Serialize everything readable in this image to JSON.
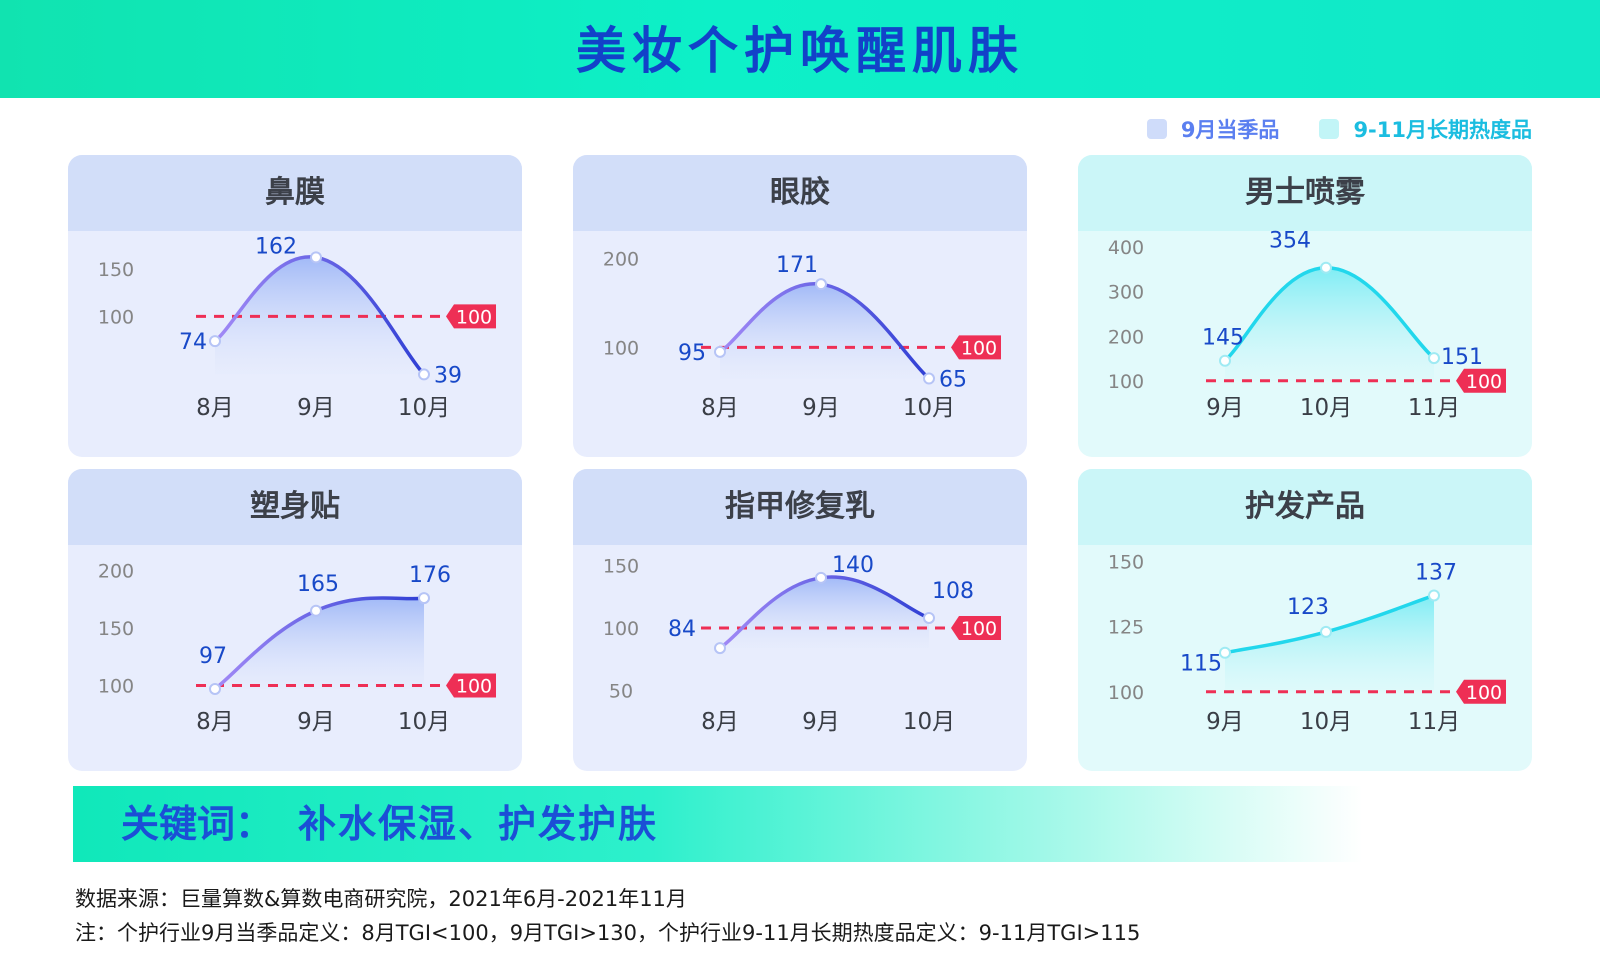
{
  "title": "美妆个护唤醒肌肤",
  "legend": [
    {
      "label": "9月当季品",
      "color": "#cfdcfa",
      "text_color": "#5b7ff0"
    },
    {
      "label": "9-11月长期热度品",
      "color": "#c2f5f7",
      "text_color": "#1bbde0"
    }
  ],
  "chart_data": [
    {
      "type": "line",
      "title": "鼻膜",
      "theme": "blue",
      "categories": [
        "8月",
        "9月",
        "10月"
      ],
      "values": [
        74,
        162,
        39
      ],
      "ylim": [
        30,
        175
      ],
      "yticks": [
        100,
        150
      ],
      "reference": 100
    },
    {
      "type": "line",
      "title": "眼胶",
      "theme": "blue",
      "categories": [
        "8月",
        "9月",
        "10月"
      ],
      "values": [
        95,
        171,
        65
      ],
      "ylim": [
        60,
        215
      ],
      "yticks": [
        100,
        200
      ],
      "reference": 100
    },
    {
      "type": "line",
      "title": "男士喷雾",
      "theme": "cyan",
      "categories": [
        "9月",
        "10月",
        "11月"
      ],
      "values": [
        145,
        354,
        151
      ],
      "ylim": [
        95,
        405
      ],
      "yticks": [
        100,
        200,
        300,
        400
      ],
      "reference": 100
    },
    {
      "type": "area",
      "title": "塑身贴",
      "theme": "blue",
      "categories": [
        "8月",
        "9月",
        "10月"
      ],
      "values": [
        97,
        165,
        176
      ],
      "ylim": [
        90,
        210
      ],
      "yticks": [
        100,
        150,
        200
      ],
      "reference": 100
    },
    {
      "type": "line",
      "title": "指甲修复乳",
      "theme": "blue",
      "categories": [
        "8月",
        "9月",
        "10月"
      ],
      "values": [
        84,
        140,
        108
      ],
      "ylim": [
        45,
        155
      ],
      "yticks": [
        50,
        100,
        150
      ],
      "reference": 100
    },
    {
      "type": "area",
      "title": "护发产品",
      "theme": "cyan",
      "categories": [
        "9月",
        "10月",
        "11月"
      ],
      "values": [
        115,
        123,
        137
      ],
      "ylim": [
        98,
        151
      ],
      "yticks": [
        100,
        125,
        150
      ],
      "reference": 100
    }
  ],
  "keyword": {
    "label": "关键词：",
    "value": "补水保湿、护发护肤"
  },
  "footer": {
    "source": "数据来源：巨量算数&算数电商研究院，2021年6月-2021年11月",
    "note": "注：个护行业9月当季品定义：8月TGI<100，9月TGI>130，个护行业9-11月长期热度品定义：9-11月TGI>115"
  },
  "colors": {
    "title": "#1242c9",
    "reference": "#ee2f55",
    "blue_line_start": "#a28af6",
    "blue_line_end": "#2f3fd4",
    "cyan_line": "#22d7ec",
    "value_text": "#1849c8"
  }
}
